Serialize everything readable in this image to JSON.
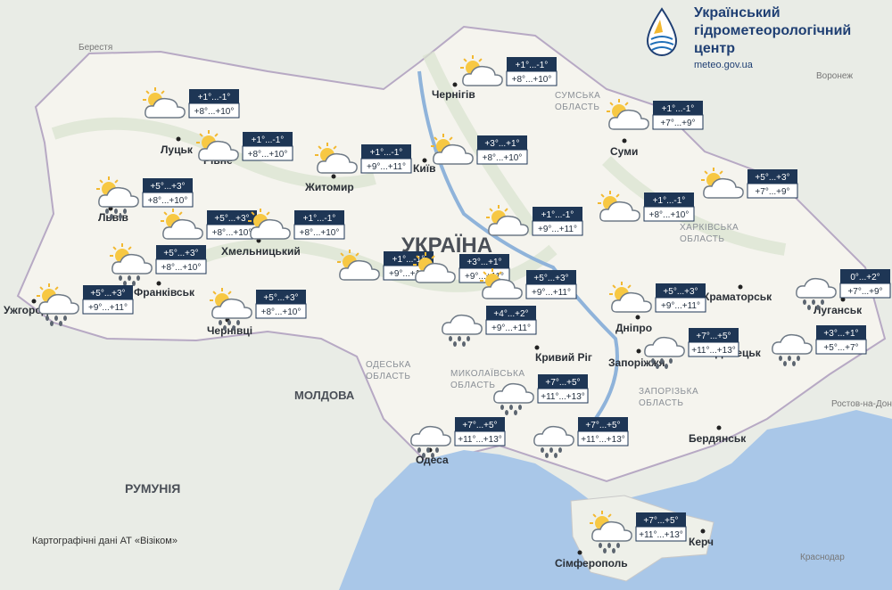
{
  "header": {
    "title_lines": [
      "Український",
      "гідрометеорологічний",
      "центр"
    ],
    "url": "meteo.gov.ua"
  },
  "map": {
    "countries": [
      "УКРАЇНА",
      "МОЛДОВА",
      "РУМУНІЯ"
    ],
    "regions": [
      [
        "СУМСЬКА",
        "ОБЛАСТЬ"
      ],
      [
        "ХАРКІВСЬКА",
        "ОБЛАСТЬ"
      ],
      [
        "ОДЕСЬКА",
        "ОБЛАСТЬ"
      ],
      [
        "МИКОЛАЇВСЬКА",
        "ОБЛАСТЬ"
      ],
      [
        "ЗАПОРІЗЬКА",
        "ОБЛАСТЬ"
      ]
    ],
    "cities": [
      "Луцьк",
      "Рівне",
      "Житомир",
      "Чернігів",
      "Київ",
      "Суми",
      "Львів",
      "Хмельницький",
      "Франківськ",
      "Ужгород",
      "Чернівці",
      "Дніпро",
      "Краматорськ",
      "Луганськ",
      "Донецьк",
      "Запоріжжя",
      "Кривий Ріг",
      "Одеса",
      "Бердянськ",
      "Керч",
      "Сімферополь"
    ],
    "foreign_cities": [
      "Берестя",
      "Воронеж",
      "Ростов-на-Дону",
      "Краснодар"
    ],
    "attribution": "Картографічні дані АТ «Візіком»"
  },
  "forecasts": [
    {
      "night": "+1°...-1°",
      "day": "+8°...+10°",
      "icon": "partly-cloudy"
    },
    {
      "night": "+1°...-1°",
      "day": "+8°...+10°",
      "icon": "partly-cloudy"
    },
    {
      "night": "+1°...-1°",
      "day": "+9°...+11°",
      "icon": "partly-cloudy"
    },
    {
      "night": "+1°...-1°",
      "day": "+8°...+10°",
      "icon": "partly-cloudy"
    },
    {
      "night": "+3°...+1°",
      "day": "+8°...+10°",
      "icon": "partly-cloudy"
    },
    {
      "night": "+1°...-1°",
      "day": "+7°...+9°",
      "icon": "partly-cloudy"
    },
    {
      "night": "+5°...+3°",
      "day": "+8°...+10°",
      "icon": "partly-cloudy-rain"
    },
    {
      "night": "+5°...+3°",
      "day": "+8°...+10°",
      "icon": "partly-cloudy"
    },
    {
      "night": "+1°...-1°",
      "day": "+8°...+10°",
      "icon": "partly-cloudy"
    },
    {
      "night": "+1°...-1°",
      "day": "+9°...+11°",
      "icon": "partly-cloudy"
    },
    {
      "night": "+1°...-1°",
      "day": "+9°...+11°",
      "icon": "partly-cloudy"
    },
    {
      "night": "+1°...-1°",
      "day": "+8°...+10°",
      "icon": "partly-cloudy"
    },
    {
      "night": "+5°...+3°",
      "day": "+7°...+9°",
      "icon": "partly-cloudy"
    },
    {
      "night": "+5°...+3°",
      "day": "+8°...+10°",
      "icon": "partly-cloudy-rain"
    },
    {
      "night": "+5°...+3°",
      "day": "+9°...+11°",
      "icon": "partly-cloudy-rain"
    },
    {
      "night": "+5°...+3°",
      "day": "+8°...+10°",
      "icon": "partly-cloudy-rain"
    },
    {
      "night": "+3°...+1°",
      "day": "+9°...+11°",
      "icon": "partly-cloudy"
    },
    {
      "night": "+5°...+3°",
      "day": "+9°...+11°",
      "icon": "partly-cloudy"
    },
    {
      "night": "+4°...+2°",
      "day": "+9°...+11°",
      "icon": "cloudy-rain"
    },
    {
      "night": "+5°...+3°",
      "day": "+9°...+11°",
      "icon": "partly-cloudy"
    },
    {
      "night": "+7°...+5°",
      "day": "+11°...+13°",
      "icon": "cloudy-rain"
    },
    {
      "night": "0°...+2°",
      "day": "+7°...+9°",
      "icon": "cloudy-rain"
    },
    {
      "night": "+3°...+1°",
      "day": "+5°...+7°",
      "icon": "cloudy-rain"
    },
    {
      "night": "+7°...+5°",
      "day": "+11°...+13°",
      "icon": "cloudy-rain"
    },
    {
      "night": "+7°...+5°",
      "day": "+11°...+13°",
      "icon": "cloudy-rain"
    },
    {
      "night": "+7°...+5°",
      "day": "+11°...+13°",
      "icon": "cloudy-rain"
    },
    {
      "night": "+7°...+5°",
      "day": "+11°...+13°",
      "icon": "partly-cloudy-rain"
    }
  ]
}
